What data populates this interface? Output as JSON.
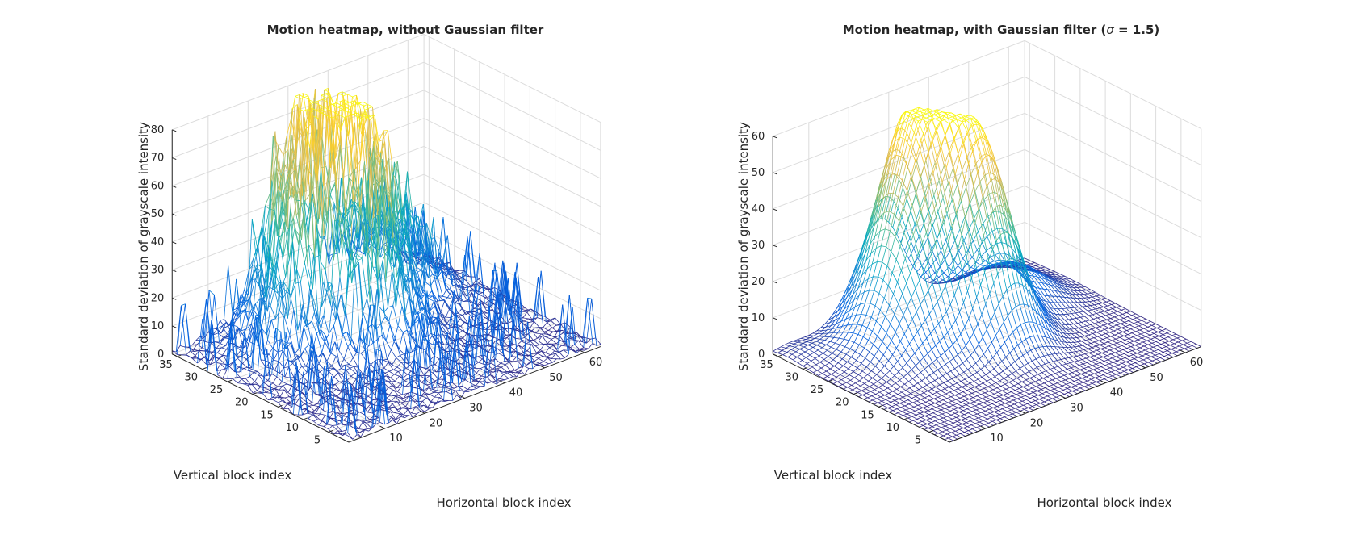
{
  "figure": {
    "background": "#ffffff",
    "grid_color": "#dcdcdc",
    "axis_color": "#262626",
    "colormap": "parula",
    "colormap_stops": [
      "#352a87",
      "#0363e1",
      "#1485d4",
      "#06a7c6",
      "#38b99e",
      "#92bf73",
      "#d9ba56",
      "#fcce2e",
      "#f9fb0e"
    ]
  },
  "chart_data": [
    {
      "type": "surface-mesh",
      "title_prefix": "Motion heatmap, without Gaussian filter",
      "title_sigma_symbol": "",
      "title_sigma_value": "",
      "title_suffix": "",
      "xlabel": "Horizontal block index",
      "ylabel": "Vertical block index",
      "zlabel": "Standard deviation of grayscale intensity",
      "xlim": [
        1,
        64
      ],
      "ylim": [
        1,
        36
      ],
      "zlim": [
        0,
        80
      ],
      "xticks": [
        "10",
        "20",
        "30",
        "40",
        "50",
        "60"
      ],
      "yticks": [
        "5",
        "10",
        "15",
        "20",
        "25",
        "30",
        "35"
      ],
      "zticks": [
        "0",
        "10",
        "20",
        "30",
        "40",
        "50",
        "60",
        "70",
        "80"
      ],
      "grid": true,
      "filtered": false,
      "peaks": [
        {
          "x": 30,
          "y": 31,
          "z": 68
        },
        {
          "x": 33,
          "y": 24,
          "z": 70
        },
        {
          "x": 20,
          "y": 27,
          "z": 30
        },
        {
          "x": 48,
          "y": 30,
          "z": 35
        }
      ]
    },
    {
      "type": "surface-mesh",
      "title_prefix": "Motion heatmap, with Gaussian filter (",
      "title_sigma_symbol": "σ",
      "title_sigma_value": " = 1.5",
      "title_suffix": ")",
      "xlabel": "Horizontal block index",
      "ylabel": "Vertical block index",
      "zlabel": "Standard deviation of grayscale intensity",
      "xlim": [
        1,
        64
      ],
      "ylim": [
        1,
        36
      ],
      "zlim": [
        0,
        60
      ],
      "xticks": [
        "10",
        "20",
        "30",
        "40",
        "50",
        "60"
      ],
      "yticks": [
        "5",
        "10",
        "15",
        "20",
        "25",
        "30",
        "35"
      ],
      "zticks": [
        "0",
        "10",
        "20",
        "30",
        "40",
        "50",
        "60"
      ],
      "grid": true,
      "filtered": true,
      "peaks": [
        {
          "x": 28,
          "y": 30,
          "z": 50
        },
        {
          "x": 35,
          "y": 22,
          "z": 52
        },
        {
          "x": 20,
          "y": 26,
          "z": 22
        },
        {
          "x": 50,
          "y": 27,
          "z": 10
        }
      ]
    }
  ]
}
